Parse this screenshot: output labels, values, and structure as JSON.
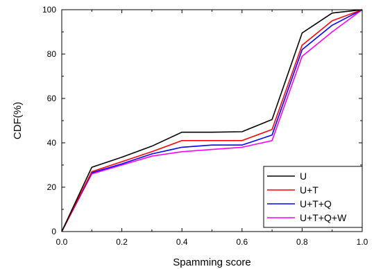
{
  "chart_data": {
    "type": "line",
    "xlabel": "Spamming score",
    "ylabel": "CDF(%)",
    "xlim": [
      0.0,
      1.0
    ],
    "ylim": [
      0,
      100
    ],
    "xticks": [
      "0.0",
      "0.2",
      "0.4",
      "0.6",
      "0.8",
      "1.0"
    ],
    "yticks": [
      "0",
      "20",
      "40",
      "60",
      "80",
      "100"
    ],
    "grid": false,
    "legend_position": "bottom-right",
    "x": [
      0.0,
      0.1,
      0.2,
      0.3,
      0.4,
      0.5,
      0.6,
      0.7,
      0.8,
      0.9,
      1.0
    ],
    "series": [
      {
        "name": "U",
        "color": "#000000",
        "values": [
          0,
          29,
          33.5,
          38.5,
          44.8,
          44.8,
          45,
          50.5,
          89.5,
          98.5,
          100
        ]
      },
      {
        "name": "U+T",
        "color": "#ff0000",
        "values": [
          0,
          27,
          31.5,
          36,
          41,
          41,
          41,
          46,
          84,
          95,
          100
        ]
      },
      {
        "name": "U+T+Q",
        "color": "#0000ff",
        "values": [
          0,
          26.5,
          30.5,
          35,
          38,
          39,
          39,
          43.5,
          82,
          93,
          100
        ]
      },
      {
        "name": "U+T+Q+W",
        "color": "#ff00ff",
        "values": [
          0,
          26,
          30,
          34,
          36,
          37,
          38,
          41,
          79,
          90,
          100
        ]
      }
    ]
  }
}
